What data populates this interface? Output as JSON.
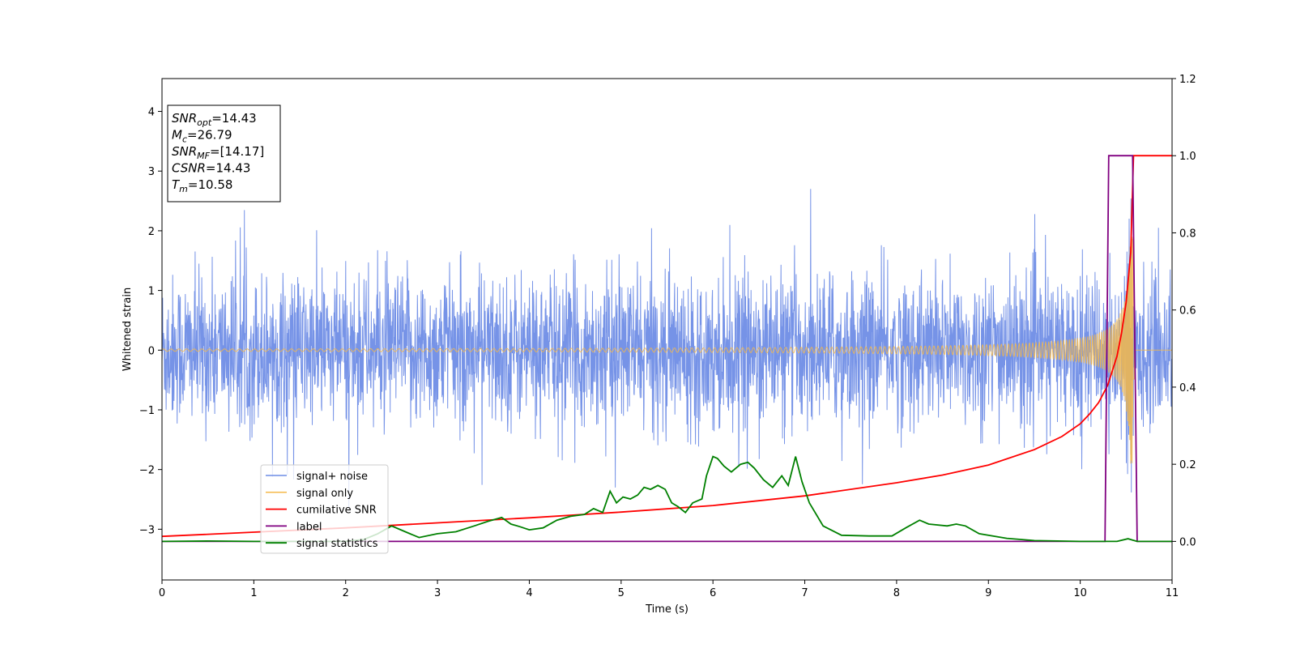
{
  "chart_data": {
    "type": "line",
    "xlabel": "Time (s)",
    "ylabel": "Whitened strain",
    "xlim": [
      0,
      11
    ],
    "ylim": [
      -3.85,
      4.55
    ],
    "y2lim": [
      -0.1,
      1.2
    ],
    "xticks": [
      "0",
      "1",
      "2",
      "3",
      "4",
      "5",
      "6",
      "7",
      "8",
      "9",
      "10",
      "11"
    ],
    "yticks": [
      "−3",
      "−2",
      "−1",
      "0",
      "1",
      "2",
      "3",
      "4"
    ],
    "y2ticks": [
      "0.0",
      "0.2",
      "0.4",
      "0.6",
      "0.8",
      "1.0",
      "1.2"
    ],
    "legend_position": "lower-left",
    "info_box": {
      "lines": [
        {
          "main": "SNR",
          "sub": "opt",
          "value": "=14.43"
        },
        {
          "main": "M",
          "sub": "c",
          "value": "=26.79"
        },
        {
          "main": "SNR",
          "sub": "MF",
          "value": "=[14.17]"
        },
        {
          "main": "CSNR",
          "sub": "",
          "value": "=14.43"
        },
        {
          "main": "T",
          "sub": "m",
          "value": "=10.58"
        }
      ]
    },
    "series": [
      {
        "name": "signal+ noise",
        "color": "#6f8de6",
        "axis": "left",
        "description_values": {
          "amplitude_typical": 1.3,
          "peak_max": 2.7,
          "peak_min": -3.45
        }
      },
      {
        "name": "signal only",
        "color": "#f5b84a",
        "axis": "left",
        "chirp_start_amplitude": 0.02,
        "chirp_merger_time": 10.58,
        "chirp_peak_amplitude": 1.9
      },
      {
        "name": "cumilative SNR",
        "color": "#ff0000",
        "axis": "right",
        "x": [
          0,
          1,
          2,
          3,
          4,
          5,
          6,
          7,
          8,
          8.5,
          9,
          9.5,
          9.8,
          10,
          10.1,
          10.2,
          10.3,
          10.4,
          10.45,
          10.5,
          10.55,
          10.58,
          10.6,
          11
        ],
        "y": [
          0.013,
          0.024,
          0.035,
          0.048,
          0.061,
          0.076,
          0.093,
          0.118,
          0.152,
          0.172,
          0.198,
          0.238,
          0.272,
          0.305,
          0.33,
          0.36,
          0.405,
          0.48,
          0.54,
          0.62,
          0.75,
          1.0,
          1.0,
          1.0
        ]
      },
      {
        "name": "label",
        "color": "#800080",
        "axis": "right",
        "x": [
          0,
          10.27,
          10.31,
          10.57,
          10.62,
          11
        ],
        "y": [
          0,
          0,
          1,
          1,
          0,
          0
        ]
      },
      {
        "name": "signal statistics",
        "color": "#008000",
        "axis": "right",
        "x": [
          0,
          0.5,
          1,
          1.5,
          2,
          2.2,
          2.35,
          2.5,
          2.65,
          2.8,
          3,
          3.2,
          3.4,
          3.55,
          3.7,
          3.8,
          3.9,
          4,
          4.15,
          4.3,
          4.45,
          4.6,
          4.7,
          4.8,
          4.88,
          4.95,
          5.02,
          5.1,
          5.18,
          5.25,
          5.32,
          5.4,
          5.48,
          5.55,
          5.62,
          5.7,
          5.78,
          5.88,
          5.93,
          6.0,
          6.05,
          6.12,
          6.2,
          6.3,
          6.38,
          6.45,
          6.55,
          6.65,
          6.75,
          6.82,
          6.9,
          6.97,
          7.05,
          7.2,
          7.4,
          7.7,
          7.95,
          8.1,
          8.25,
          8.35,
          8.55,
          8.65,
          8.75,
          8.9,
          9.2,
          9.5,
          10.0,
          10.4,
          10.52,
          10.62,
          11
        ],
        "y": [
          0.0,
          0.001,
          0.0,
          0.0,
          0.0,
          0.005,
          0.02,
          0.04,
          0.025,
          0.01,
          0.02,
          0.025,
          0.04,
          0.052,
          0.062,
          0.045,
          0.038,
          0.03,
          0.035,
          0.055,
          0.065,
          0.07,
          0.085,
          0.075,
          0.13,
          0.1,
          0.115,
          0.11,
          0.12,
          0.14,
          0.135,
          0.145,
          0.135,
          0.1,
          0.09,
          0.075,
          0.1,
          0.11,
          0.17,
          0.22,
          0.215,
          0.195,
          0.18,
          0.2,
          0.205,
          0.19,
          0.16,
          0.14,
          0.17,
          0.145,
          0.22,
          0.155,
          0.1,
          0.04,
          0.016,
          0.014,
          0.014,
          0.035,
          0.055,
          0.045,
          0.04,
          0.045,
          0.04,
          0.02,
          0.008,
          0.002,
          0.0,
          0.0,
          0.007,
          0.0,
          0.0
        ]
      }
    ]
  }
}
